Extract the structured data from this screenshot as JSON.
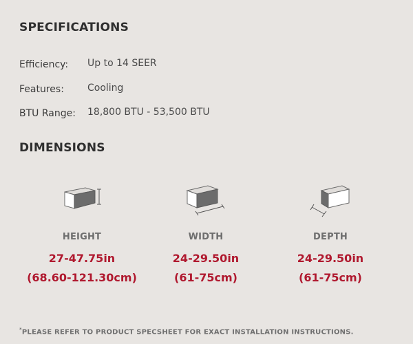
{
  "specifications": {
    "title": "SPECIFICATIONS",
    "rows": [
      {
        "label": "Efficiency:",
        "value": "Up to 14 SEER"
      },
      {
        "label": "Features:",
        "value": "Cooling"
      },
      {
        "label": "BTU Range:",
        "value": "18,800 BTU - 53,500 BTU"
      }
    ]
  },
  "dimensions": {
    "title": "DIMENSIONS",
    "items": [
      {
        "name": "HEIGHT",
        "inches": "27-47.75in",
        "cm": "(68.60-121.30cm)",
        "icon": "height-box-icon"
      },
      {
        "name": "WIDTH",
        "inches": "24-29.50in",
        "cm": "(61-75cm)",
        "icon": "width-box-icon"
      },
      {
        "name": "DEPTH",
        "inches": "24-29.50in",
        "cm": "(61-75cm)",
        "icon": "depth-box-icon"
      }
    ]
  },
  "footnote": {
    "marker": "*",
    "text": "PLEASE REFER TO PRODUCT SPECSHEET FOR EXACT INSTALLATION INSTRUCTIONS."
  },
  "colors": {
    "background": "#e8e5e2",
    "accent": "#b0192f"
  }
}
